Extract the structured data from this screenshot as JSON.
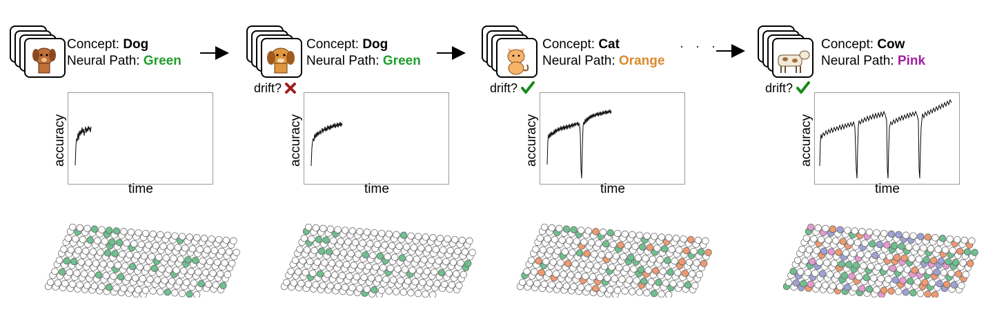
{
  "stages": [
    {
      "concept_label": "Concept: ",
      "concept": "Dog",
      "path_label": "Neural Path: ",
      "path": "Green",
      "path_color": "#1f9e2c",
      "drift_label": "",
      "drift_mark": "none",
      "xlabel": "time",
      "ylabel": "accuracy",
      "icon": "dog-icon"
    },
    {
      "concept_label": "Concept: ",
      "concept": "Dog",
      "path_label": "Neural Path: ",
      "path": "Green",
      "path_color": "#1f9e2c",
      "drift_label": "drift?",
      "drift_mark": "x",
      "xlabel": "time",
      "ylabel": "accuracy",
      "icon": "dog-icon"
    },
    {
      "concept_label": "Concept: ",
      "concept": "Cat",
      "path_label": "Neural Path: ",
      "path": "Orange",
      "path_color": "#d98a2b",
      "drift_label": "drift?",
      "drift_mark": "check",
      "xlabel": "time",
      "ylabel": "accuracy",
      "icon": "cat-icon"
    },
    {
      "concept_label": "Concept: ",
      "concept": "Cow",
      "path_label": "Neural Path: ",
      "path": "Pink",
      "path_color": "#a020a0",
      "drift_label": "drift?",
      "drift_mark": "check",
      "xlabel": "time",
      "ylabel": "accuracy",
      "icon": "cow-icon"
    }
  ],
  "ellipsis": "· · ·",
  "colors": {
    "green_node": "#6fbf8f",
    "orange_node": "#ef9a70",
    "pink_node": "#e59ad0",
    "blue_node": "#9fa1d6",
    "x_mark": "#a11d1d",
    "check_mark": "#1a8a1a"
  }
}
